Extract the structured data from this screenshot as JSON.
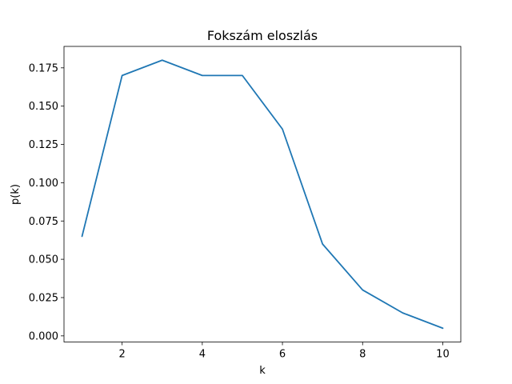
{
  "chart_data": {
    "type": "line",
    "title": "Fokszám eloszlás",
    "xlabel": "k",
    "ylabel": "p(k)",
    "x": [
      1,
      2,
      3,
      4,
      5,
      6,
      7,
      8,
      9,
      10
    ],
    "series": [
      {
        "name": "p(k)",
        "color": "#1f77b4",
        "values": [
          0.065,
          0.17,
          0.18,
          0.17,
          0.17,
          0.135,
          0.06,
          0.03,
          0.015,
          0.005
        ]
      }
    ],
    "xlim": [
      0.55,
      10.45
    ],
    "ylim": [
      -0.004,
      0.189
    ],
    "xticks": [
      2,
      4,
      6,
      8,
      10
    ],
    "xtick_labels": [
      "2",
      "4",
      "6",
      "8",
      "10"
    ],
    "yticks": [
      0,
      0.025,
      0.05,
      0.075,
      0.1,
      0.125,
      0.15,
      0.175
    ],
    "ytick_labels": [
      "0.000",
      "0.025",
      "0.050",
      "0.075",
      "0.100",
      "0.125",
      "0.150",
      "0.175"
    ],
    "grid": false
  }
}
